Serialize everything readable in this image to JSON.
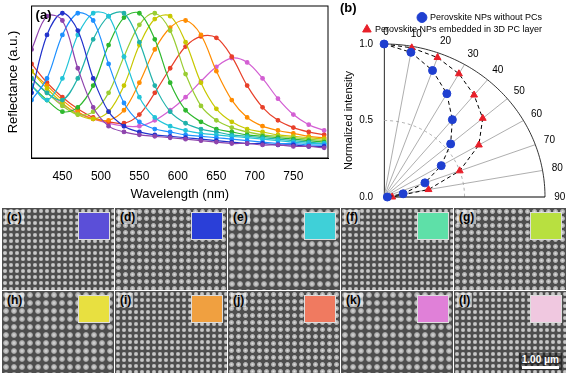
{
  "chart_data": [
    {
      "type": "line",
      "annotations": [
        "(a)"
      ],
      "x_label": "Wavelength (nm)",
      "y_label": "Reflectance (a.u.)",
      "x": [
        410,
        430,
        450,
        470,
        490,
        510,
        530,
        550,
        570,
        590,
        610,
        630,
        650,
        670,
        690,
        710,
        730,
        750,
        770,
        790
      ],
      "xlim": [
        410,
        795
      ],
      "xticks": [
        450,
        500,
        550,
        600,
        650,
        700,
        750
      ],
      "ylim": [
        0,
        1.05
      ],
      "tick_labels": "x",
      "grid": false,
      "marker": "circle",
      "series": [
        {
          "color": "#8e44ad",
          "values": [
            0.75,
            0.98,
            0.95,
            0.62,
            0.35,
            0.22,
            0.18,
            0.16,
            0.15,
            0.14,
            0.13,
            0.12,
            0.11,
            0.1,
            0.1,
            0.09,
            0.09,
            0.08,
            0.08,
            0.07
          ]
        },
        {
          "color": "#2233cc",
          "values": [
            0.45,
            0.85,
            1.0,
            0.88,
            0.55,
            0.32,
            0.22,
            0.18,
            0.16,
            0.15,
            0.14,
            0.13,
            0.12,
            0.11,
            0.1,
            0.1,
            0.09,
            0.09,
            0.08,
            0.08
          ]
        },
        {
          "color": "#1e90ff",
          "values": [
            0.4,
            0.55,
            0.85,
            1.0,
            0.95,
            0.65,
            0.38,
            0.25,
            0.2,
            0.18,
            0.16,
            0.15,
            0.14,
            0.13,
            0.12,
            0.11,
            0.1,
            0.1,
            0.09,
            0.09
          ]
        },
        {
          "color": "#22c4d8",
          "values": [
            0.5,
            0.4,
            0.55,
            0.85,
            1.0,
            0.98,
            0.7,
            0.42,
            0.28,
            0.22,
            0.19,
            0.17,
            0.16,
            0.15,
            0.14,
            0.13,
            0.12,
            0.11,
            0.1,
            0.1
          ]
        },
        {
          "color": "#20b2aa",
          "values": [
            0.55,
            0.45,
            0.4,
            0.55,
            0.82,
            0.98,
            1.0,
            0.8,
            0.5,
            0.32,
            0.24,
            0.2,
            0.18,
            0.16,
            0.15,
            0.14,
            0.13,
            0.12,
            0.11,
            0.1
          ]
        },
        {
          "color": "#2eb82e",
          "values": [
            0.5,
            0.4,
            0.32,
            0.35,
            0.5,
            0.78,
            0.97,
            1.0,
            0.82,
            0.52,
            0.33,
            0.25,
            0.2,
            0.18,
            0.16,
            0.15,
            0.14,
            0.13,
            0.12,
            0.11
          ]
        },
        {
          "color": "#9acd32",
          "values": [
            0.55,
            0.45,
            0.36,
            0.3,
            0.32,
            0.45,
            0.7,
            0.92,
            1.0,
            0.88,
            0.58,
            0.36,
            0.26,
            0.21,
            0.18,
            0.16,
            0.15,
            0.14,
            0.13,
            0.12
          ]
        },
        {
          "color": "#c8c800",
          "values": [
            0.6,
            0.48,
            0.38,
            0.3,
            0.27,
            0.32,
            0.5,
            0.78,
            0.96,
            0.98,
            0.8,
            0.52,
            0.34,
            0.25,
            0.2,
            0.18,
            0.16,
            0.15,
            0.14,
            0.13
          ]
        },
        {
          "color": "#ff8c00",
          "values": [
            0.6,
            0.5,
            0.4,
            0.32,
            0.27,
            0.26,
            0.33,
            0.52,
            0.75,
            0.9,
            0.95,
            0.85,
            0.6,
            0.4,
            0.28,
            0.22,
            0.19,
            0.17,
            0.15,
            0.14
          ]
        },
        {
          "color": "#e8402a",
          "values": [
            0.65,
            0.52,
            0.42,
            0.34,
            0.28,
            0.25,
            0.24,
            0.3,
            0.45,
            0.62,
            0.77,
            0.84,
            0.83,
            0.7,
            0.5,
            0.35,
            0.26,
            0.21,
            0.18,
            0.16
          ]
        },
        {
          "color": "#d35fd3",
          "values": [
            0.55,
            0.45,
            0.37,
            0.31,
            0.27,
            0.24,
            0.22,
            0.22,
            0.26,
            0.33,
            0.42,
            0.53,
            0.63,
            0.69,
            0.66,
            0.55,
            0.41,
            0.3,
            0.23,
            0.19
          ]
        }
      ]
    },
    {
      "type": "polar",
      "annotations": [
        "(b)"
      ],
      "y_label": "Normalized intensity",
      "x": [
        0,
        10,
        20,
        30,
        40,
        50,
        60,
        70,
        80,
        90
      ],
      "xlim": [
        0,
        90
      ],
      "xticks": [
        0,
        10,
        20,
        30,
        40,
        50,
        60,
        70,
        80,
        90
      ],
      "ylim": [
        0,
        1
      ],
      "yticks": [
        {
          "value": 0,
          "label": "0.0"
        },
        {
          "value": 0.5,
          "label": "0.5"
        },
        {
          "value": 1,
          "label": "1.0"
        }
      ],
      "tick_labels": "y",
      "legend": "top",
      "line_style": "dashed",
      "series": [
        {
          "name": "Perovskite NPs without PCs",
          "color": "#1f3fd0",
          "marker": "circle",
          "values": [
            1.0,
            0.96,
            0.88,
            0.78,
            0.66,
            0.54,
            0.41,
            0.27,
            0.12,
            0.02
          ]
        },
        {
          "name": "Perovskite NPs embedded in 3D PC layer",
          "color": "#e8202a",
          "marker": "triangle",
          "values": [
            1.0,
            0.99,
            0.97,
            0.93,
            0.87,
            0.8,
            0.68,
            0.5,
            0.28,
            0.05
          ]
        }
      ]
    }
  ],
  "panels": [
    {
      "label": "(c)",
      "inset_color": "#5b4fd8"
    },
    {
      "label": "(d)",
      "inset_color": "#2a3fd8"
    },
    {
      "label": "(e)",
      "inset_color": "#3fd0d8"
    },
    {
      "label": "(f)",
      "inset_color": "#5ee0a8"
    },
    {
      "label": "(g)",
      "inset_color": "#b8e040"
    },
    {
      "label": "(h)",
      "inset_color": "#e8e040"
    },
    {
      "label": "(i)",
      "inset_color": "#f0a040"
    },
    {
      "label": "(j)",
      "inset_color": "#f07a60"
    },
    {
      "label": "(k)",
      "inset_color": "#e080d8"
    },
    {
      "label": "(l)",
      "inset_color": "#f0c8e0"
    }
  ],
  "scale_bar": "1.00 μm"
}
